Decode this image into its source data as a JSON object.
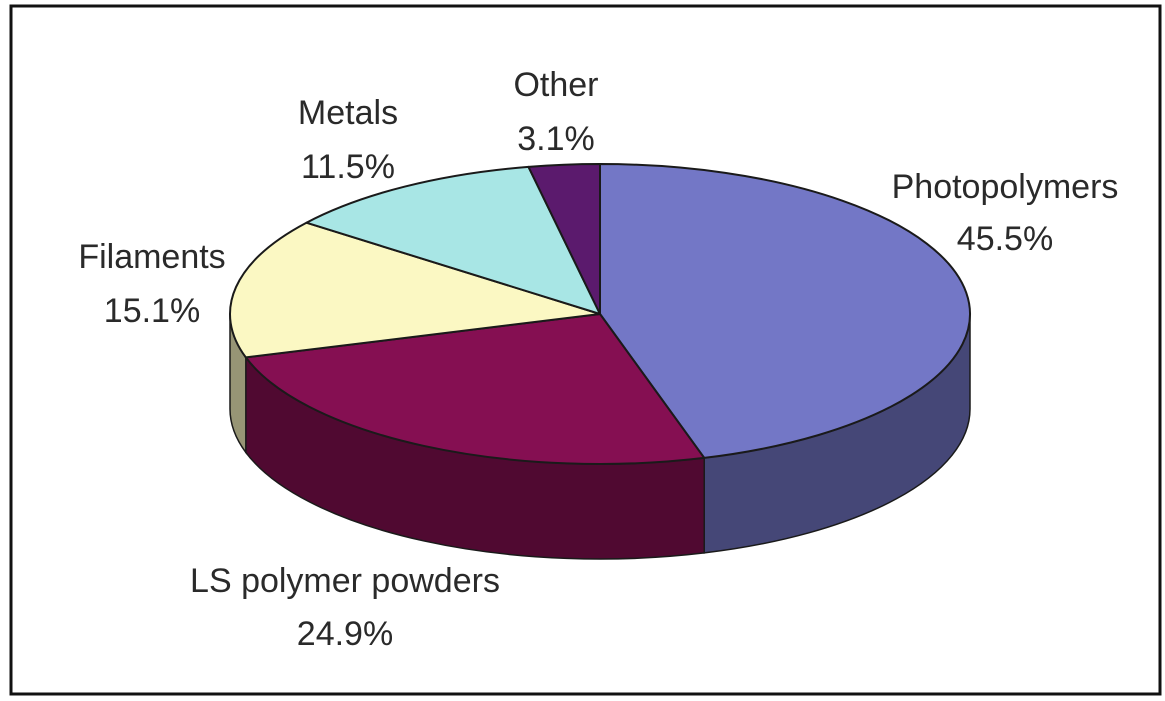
{
  "chart_data": {
    "type": "pie",
    "style": "3d",
    "slices": [
      {
        "label": "Photopolymers",
        "value": 45.5,
        "value_text": "45.5%",
        "color": "#7377c6"
      },
      {
        "label": "LS polymer powders",
        "value": 24.9,
        "value_text": "24.9%",
        "color": "#850f52"
      },
      {
        "label": "Filaments",
        "value": 15.1,
        "value_text": "15.1%",
        "color": "#fbf8c3"
      },
      {
        "label": "Metals",
        "value": 11.5,
        "value_text": "11.5%",
        "color": "#a8e6e5"
      },
      {
        "label": "Other",
        "value": 3.1,
        "value_text": "3.1%",
        "color": "#5b1a6d"
      }
    ],
    "start": "12 o'clock",
    "direction": "clockwise",
    "legend": "none"
  }
}
